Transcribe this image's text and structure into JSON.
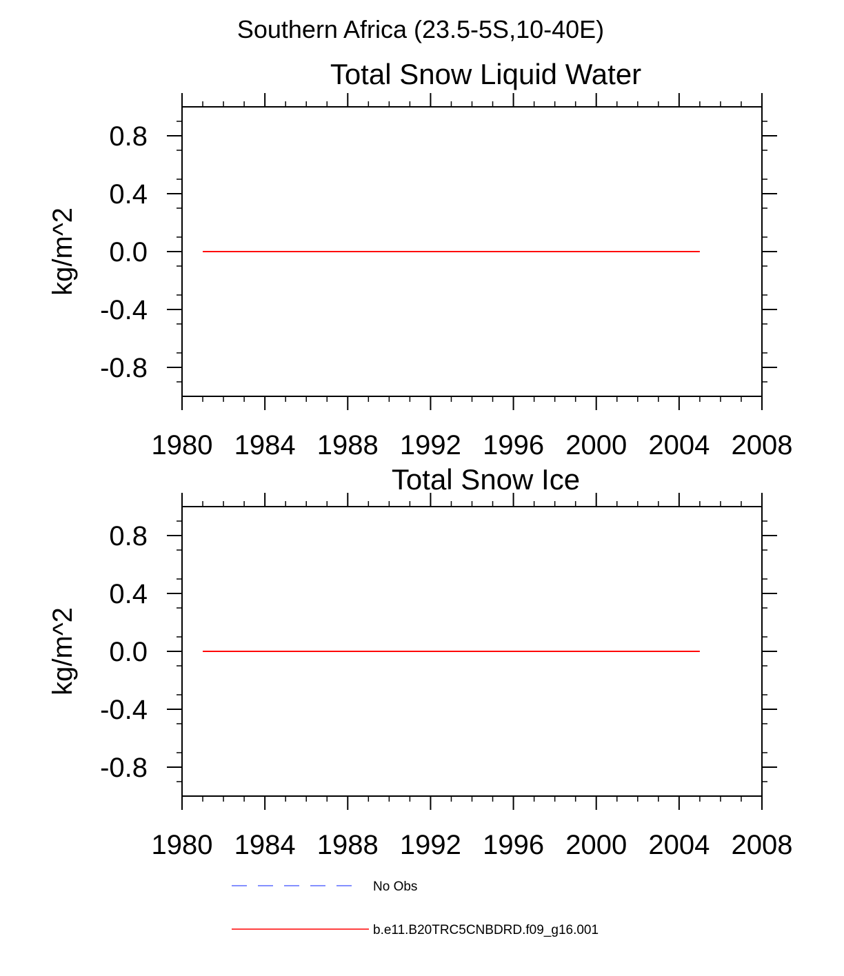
{
  "suptitle": "Southern Africa (23.5-5S,10-40E)",
  "chart_data": [
    {
      "type": "line",
      "title": "Total Snow Liquid Water",
      "xlabel": "",
      "ylabel": "kg/m^2",
      "xlim": [
        1980,
        2008
      ],
      "ylim": [
        -1.0,
        1.0
      ],
      "x_ticks": [
        "1980",
        "1984",
        "1988",
        "1992",
        "1996",
        "2000",
        "2004",
        "2008"
      ],
      "y_ticks": [
        "0.8",
        "0.4",
        "0.0",
        "-0.4",
        "-0.8"
      ],
      "grid": false,
      "series": [
        {
          "name": "b.e11.B20TRC5CNBDRD.f09_g16.001",
          "color": "#ff0000",
          "style": "solid",
          "x": [
            1981,
            2005
          ],
          "y": [
            0.0,
            0.0
          ]
        }
      ]
    },
    {
      "type": "line",
      "title": "Total Snow Ice",
      "xlabel": "",
      "ylabel": "kg/m^2",
      "xlim": [
        1980,
        2008
      ],
      "ylim": [
        -1.0,
        1.0
      ],
      "x_ticks": [
        "1980",
        "1984",
        "1988",
        "1992",
        "1996",
        "2000",
        "2004",
        "2008"
      ],
      "y_ticks": [
        "0.8",
        "0.4",
        "0.0",
        "-0.4",
        "-0.8"
      ],
      "grid": false,
      "series": [
        {
          "name": "b.e11.B20TRC5CNBDRD.f09_g16.001",
          "color": "#ff0000",
          "style": "solid",
          "x": [
            1981,
            2005
          ],
          "y": [
            0.0,
            0.0
          ]
        }
      ]
    }
  ],
  "legend": {
    "placement": "bottom",
    "entries": [
      {
        "label": "No Obs",
        "color": "#5a6cff",
        "style": "dashed"
      },
      {
        "label": "b.e11.B20TRC5CNBDRD.f09_g16.001",
        "color": "#ff0000",
        "style": "solid"
      }
    ]
  }
}
